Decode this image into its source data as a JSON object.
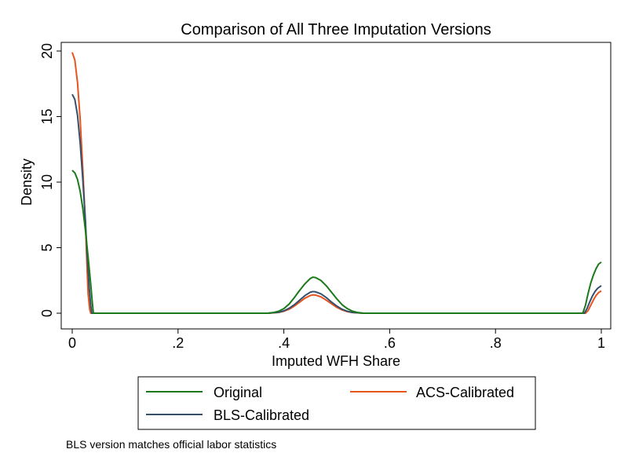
{
  "chart_data": {
    "type": "line",
    "title": "Comparison of All Three Imputation Versions",
    "xlabel": "Imputed WFH Share",
    "ylabel": "Density",
    "xlim": [
      0,
      1
    ],
    "ylim": [
      0,
      20
    ],
    "x_ticks": [
      0,
      0.2,
      0.4,
      0.6,
      0.8,
      1
    ],
    "x_tick_labels": [
      "0",
      ".2",
      ".4",
      ".6",
      ".8",
      "1"
    ],
    "y_ticks": [
      0,
      5,
      10,
      15,
      20
    ],
    "y_tick_labels": [
      "0",
      "5",
      "10",
      "15",
      "20"
    ],
    "grid": false,
    "legend_position": "bottom",
    "series": [
      {
        "name": "Original",
        "color": "#1a7a1a",
        "points": [
          [
            0.0,
            10.9
          ],
          [
            0.005,
            10.7
          ],
          [
            0.01,
            10.2
          ],
          [
            0.015,
            9.3
          ],
          [
            0.02,
            8.0
          ],
          [
            0.025,
            6.3
          ],
          [
            0.03,
            4.3
          ],
          [
            0.035,
            2.2
          ],
          [
            0.038,
            0.8
          ],
          [
            0.04,
            0
          ],
          [
            0.37,
            0
          ],
          [
            0.38,
            0.05
          ],
          [
            0.39,
            0.15
          ],
          [
            0.4,
            0.35
          ],
          [
            0.41,
            0.7
          ],
          [
            0.42,
            1.2
          ],
          [
            0.43,
            1.75
          ],
          [
            0.44,
            2.25
          ],
          [
            0.45,
            2.65
          ],
          [
            0.455,
            2.75
          ],
          [
            0.46,
            2.72
          ],
          [
            0.47,
            2.5
          ],
          [
            0.48,
            2.1
          ],
          [
            0.49,
            1.6
          ],
          [
            0.5,
            1.1
          ],
          [
            0.51,
            0.65
          ],
          [
            0.52,
            0.35
          ],
          [
            0.53,
            0.15
          ],
          [
            0.54,
            0.05
          ],
          [
            0.55,
            0
          ],
          [
            0.965,
            0
          ],
          [
            0.97,
            0.6
          ],
          [
            0.975,
            1.5
          ],
          [
            0.98,
            2.3
          ],
          [
            0.985,
            2.9
          ],
          [
            0.99,
            3.4
          ],
          [
            0.995,
            3.75
          ],
          [
            1.0,
            3.9
          ]
        ]
      },
      {
        "name": "ACS-Calibrated",
        "color": "#e8541e",
        "points": [
          [
            0.0,
            19.9
          ],
          [
            0.005,
            19.3
          ],
          [
            0.01,
            17.6
          ],
          [
            0.015,
            14.8
          ],
          [
            0.02,
            11.0
          ],
          [
            0.025,
            6.8
          ],
          [
            0.028,
            3.5
          ],
          [
            0.03,
            1.5
          ],
          [
            0.033,
            0.3
          ],
          [
            0.035,
            0
          ],
          [
            0.37,
            0
          ],
          [
            0.39,
            0.06
          ],
          [
            0.4,
            0.15
          ],
          [
            0.41,
            0.3
          ],
          [
            0.42,
            0.55
          ],
          [
            0.43,
            0.85
          ],
          [
            0.44,
            1.15
          ],
          [
            0.45,
            1.35
          ],
          [
            0.455,
            1.4
          ],
          [
            0.46,
            1.38
          ],
          [
            0.47,
            1.25
          ],
          [
            0.48,
            1.0
          ],
          [
            0.49,
            0.72
          ],
          [
            0.5,
            0.45
          ],
          [
            0.51,
            0.25
          ],
          [
            0.52,
            0.12
          ],
          [
            0.53,
            0.05
          ],
          [
            0.55,
            0
          ],
          [
            0.97,
            0
          ],
          [
            0.975,
            0.2
          ],
          [
            0.98,
            0.6
          ],
          [
            0.985,
            1.0
          ],
          [
            0.99,
            1.35
          ],
          [
            0.995,
            1.58
          ],
          [
            1.0,
            1.7
          ]
        ]
      },
      {
        "name": "BLS-Calibrated",
        "color": "#34506e",
        "points": [
          [
            0.0,
            16.7
          ],
          [
            0.005,
            16.3
          ],
          [
            0.01,
            15.1
          ],
          [
            0.015,
            13.0
          ],
          [
            0.02,
            10.2
          ],
          [
            0.025,
            7.0
          ],
          [
            0.028,
            4.6
          ],
          [
            0.032,
            2.0
          ],
          [
            0.035,
            0.6
          ],
          [
            0.037,
            0
          ],
          [
            0.37,
            0
          ],
          [
            0.39,
            0.07
          ],
          [
            0.4,
            0.18
          ],
          [
            0.41,
            0.38
          ],
          [
            0.42,
            0.65
          ],
          [
            0.43,
            1.0
          ],
          [
            0.44,
            1.35
          ],
          [
            0.45,
            1.6
          ],
          [
            0.455,
            1.65
          ],
          [
            0.46,
            1.63
          ],
          [
            0.47,
            1.48
          ],
          [
            0.48,
            1.2
          ],
          [
            0.49,
            0.85
          ],
          [
            0.5,
            0.55
          ],
          [
            0.51,
            0.3
          ],
          [
            0.52,
            0.15
          ],
          [
            0.53,
            0.06
          ],
          [
            0.55,
            0
          ],
          [
            0.968,
            0
          ],
          [
            0.973,
            0.35
          ],
          [
            0.978,
            0.85
          ],
          [
            0.983,
            1.3
          ],
          [
            0.988,
            1.65
          ],
          [
            0.993,
            1.9
          ],
          [
            1.0,
            2.1
          ]
        ]
      }
    ],
    "legend_entries": [
      "Original",
      "ACS-Calibrated",
      "BLS-Calibrated"
    ],
    "note": "BLS version matches official labor statistics"
  }
}
